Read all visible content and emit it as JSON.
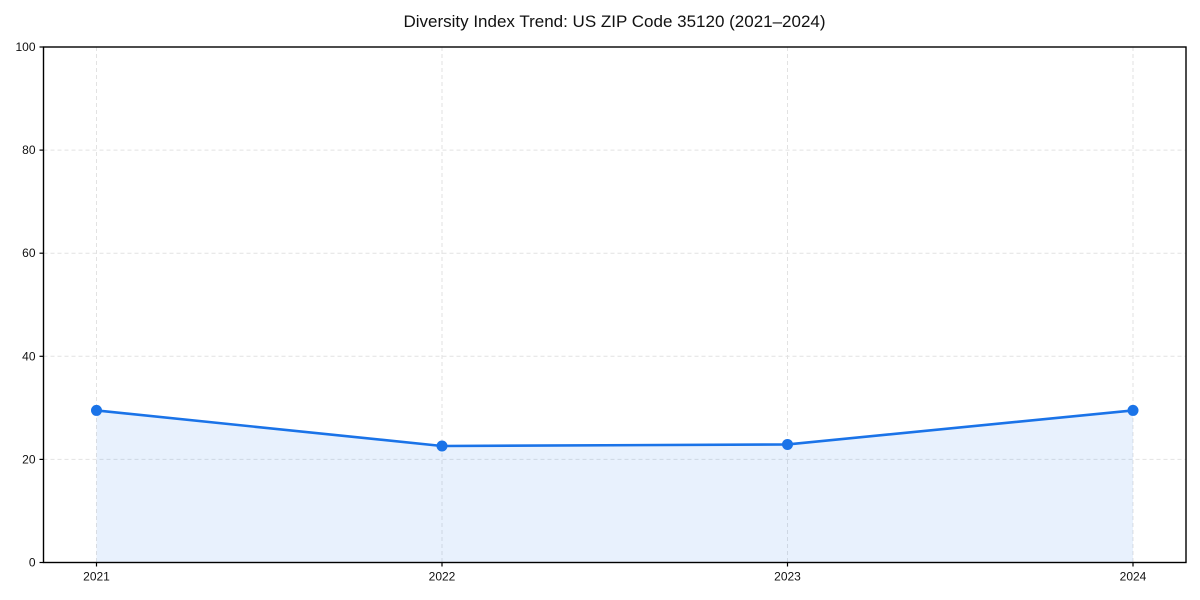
{
  "chart_data": {
    "type": "area",
    "title": "Diversity Index Trend: US ZIP Code 35120 (2021–2024)",
    "categories": [
      "2021",
      "2022",
      "2023",
      "2024"
    ],
    "series": [
      {
        "name": "Diversity Index",
        "values": [
          29.5,
          22.6,
          22.9,
          29.5
        ]
      }
    ],
    "xlabel": "",
    "ylabel": "",
    "ylim": [
      0,
      100
    ],
    "yticks": [
      0,
      20,
      40,
      60,
      80,
      100
    ],
    "grid": "dashed both axes",
    "legend": "none",
    "line_color": "#1a73e8",
    "marker_color": "#1a73e8",
    "marker_shape": "circle",
    "fill_color": "#1a73e8",
    "fill_opacity": 0.1,
    "spine_color": "#000000",
    "background_color": "#ffffff"
  }
}
